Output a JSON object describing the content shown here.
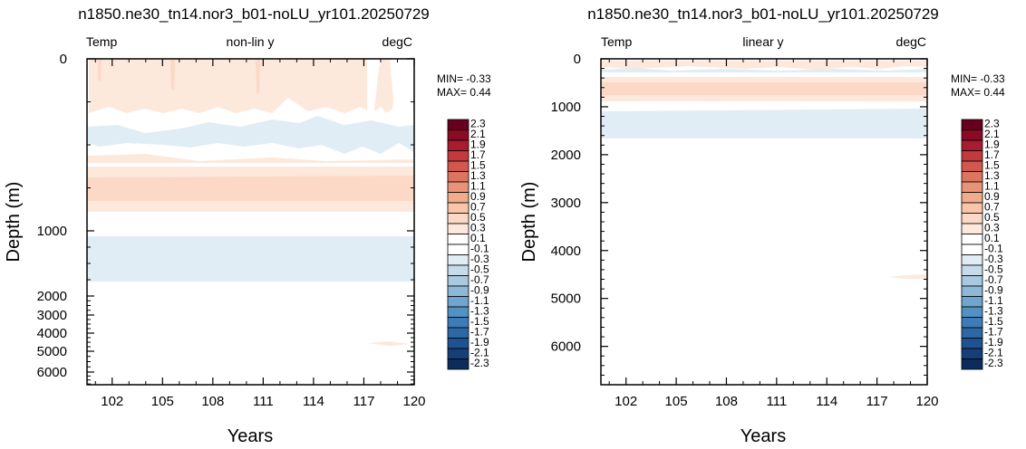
{
  "chart_data": [
    {
      "type": "heatmap",
      "title": "n1850.ne30_tn14.nor3_b01-noLU_yr101.20250729",
      "left_label": "Temp",
      "center_label": "non-lin y",
      "right_label": "degC",
      "xlabel": "Years",
      "ylabel": "Depth (m)",
      "xlim": [
        100.5,
        120
      ],
      "x_ticks": [
        102,
        105,
        108,
        111,
        114,
        117,
        120
      ],
      "y_scale": "non-linear",
      "y_ticks": [
        0,
        1000,
        2000,
        3000,
        4000,
        5000,
        6000
      ],
      "min_label": "MIN= -0.33",
      "max_label": "MAX=  0.44",
      "min": -0.33,
      "max": 0.44
    },
    {
      "type": "heatmap",
      "title": "n1850.ne30_tn14.nor3_b01-noLU_yr101.20250729",
      "left_label": "Temp",
      "center_label": "linear y",
      "right_label": "degC",
      "xlabel": "Years",
      "ylabel": "Depth (m)",
      "xlim": [
        100.5,
        120
      ],
      "x_ticks": [
        102,
        105,
        108,
        111,
        114,
        117,
        120
      ],
      "y_scale": "linear",
      "ylim": [
        0,
        6800
      ],
      "y_ticks": [
        0,
        1000,
        2000,
        3000,
        4000,
        5000,
        6000
      ],
      "min_label": "MIN= -0.33",
      "max_label": "MAX=  0.44",
      "min": -0.33,
      "max": 0.44
    }
  ],
  "colorbar": {
    "labels": [
      "2.3",
      "2.1",
      "1.9",
      "1.7",
      "1.5",
      "1.3",
      "1.1",
      "0.9",
      "0.7",
      "0.5",
      "0.3",
      "0.1",
      "-0.1",
      "-0.3",
      "-0.5",
      "-0.7",
      "-0.9",
      "-1.1",
      "-1.3",
      "-1.5",
      "-1.7",
      "-1.9",
      "-2.1",
      "-2.3"
    ],
    "colors": [
      "#67001f",
      "#8b0a25",
      "#a91b2e",
      "#c23a3c",
      "#d0584e",
      "#dc7560",
      "#e89276",
      "#f1ac8d",
      "#f8c5a8",
      "#fbd9c6",
      "#fde8dc",
      "#ffffff",
      "#ffffff",
      "#e1edf5",
      "#c7dcea",
      "#a8c9e0",
      "#8db8d8",
      "#6fa5ce",
      "#5391c2",
      "#3d7cb6",
      "#2c67a6",
      "#1e5290",
      "#163f78",
      "#0c2c5c"
    ]
  }
}
